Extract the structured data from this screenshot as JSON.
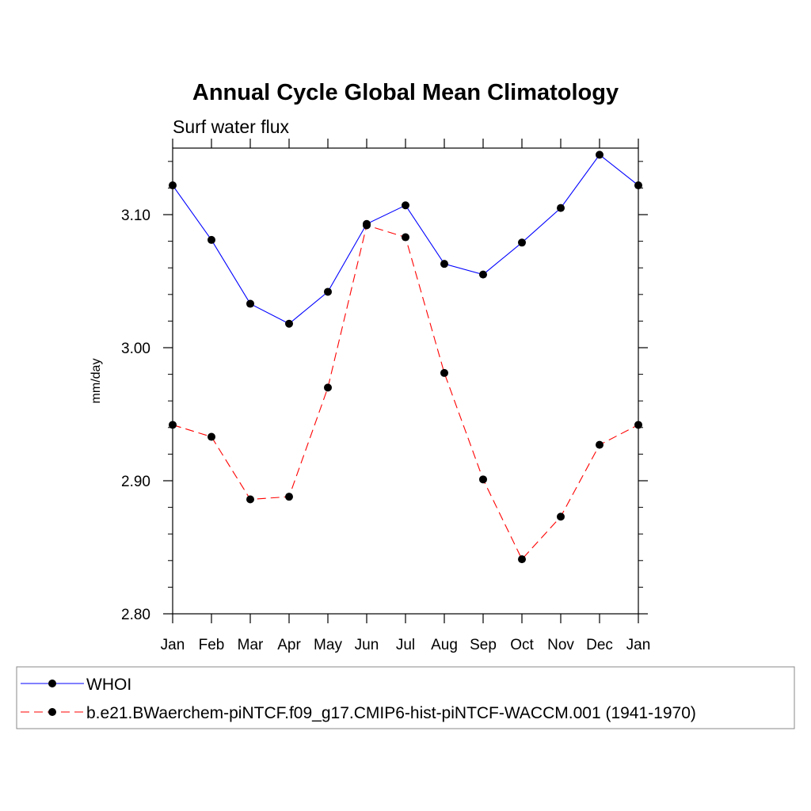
{
  "chart_data": {
    "type": "line",
    "title": "Annual Cycle Global Mean Climatology",
    "subtitle": "Surf water flux",
    "xlabel": "",
    "ylabel": "mm/day",
    "categories": [
      "Jan",
      "Feb",
      "Mar",
      "Apr",
      "May",
      "Jun",
      "Jul",
      "Aug",
      "Sep",
      "Oct",
      "Nov",
      "Dec",
      "Jan"
    ],
    "ylim": [
      2.8,
      3.15
    ],
    "yticks": [
      2.8,
      2.9,
      3.0,
      3.1
    ],
    "ytick_labels": [
      "2.80",
      "2.90",
      "3.00",
      "3.10"
    ],
    "series": [
      {
        "name": "WHOI",
        "color": "#0000ff",
        "dash": "solid",
        "values": [
          3.122,
          3.081,
          3.033,
          3.018,
          3.042,
          3.093,
          3.107,
          3.063,
          3.055,
          3.079,
          3.105,
          3.145,
          3.122
        ]
      },
      {
        "name": "b.e21.BWaerchem-piNTCF.f09_g17.CMIP6-hist-piNTCF-WACCM.001 (1941-1970)",
        "color": "#ff0000",
        "dash": "dashed",
        "values": [
          2.942,
          2.933,
          2.886,
          2.888,
          2.97,
          3.092,
          3.083,
          2.981,
          2.901,
          2.841,
          2.873,
          2.927,
          2.942
        ]
      }
    ],
    "legend_position": "bottom"
  }
}
